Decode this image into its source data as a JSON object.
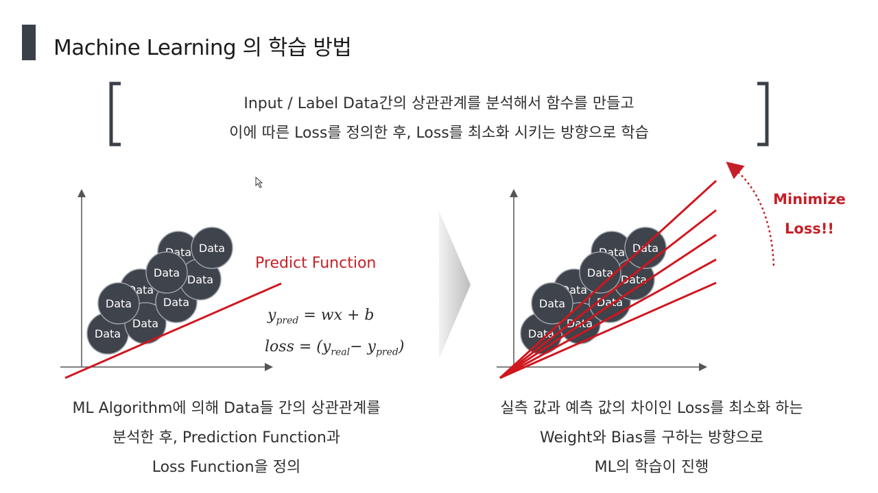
{
  "title": "Machine Learning 의 학습 방법",
  "summary": {
    "line1": "Input / Label Data간의 상관관계를 분석해서 함수를 만들고",
    "line2": "이에 따른 Loss를 정의한 후, Loss를 최소화 시키는 방향으로 학습"
  },
  "left_panel": {
    "bubble_label": "Data",
    "predict_label": "Predict Function",
    "formula1": {
      "y": "y",
      "sub": "pred",
      "rest": " = wx + b"
    },
    "formula2": {
      "pre": "loss = (y",
      "sub1": "real",
      "mid": "− y",
      "sub2": "pred",
      "post": ")"
    },
    "caption": [
      "ML Algorithm에 의해 Data들 간의 상관관계를",
      "분석한 후, Prediction Function과",
      "Loss Function을 정의"
    ]
  },
  "right_panel": {
    "bubble_label": "Data",
    "minimize_label": [
      "Minimize",
      "Loss!!"
    ],
    "caption": [
      "실측 값과 예측 값의 차이인 Loss를 최소화 하는",
      "Weight와 Bias를 구하는 방향으로",
      "ML의 학습이 진행"
    ]
  },
  "colors": {
    "accent_red": "#c42027",
    "bubble": "#3f434b",
    "title_bar": "#3b4048"
  }
}
